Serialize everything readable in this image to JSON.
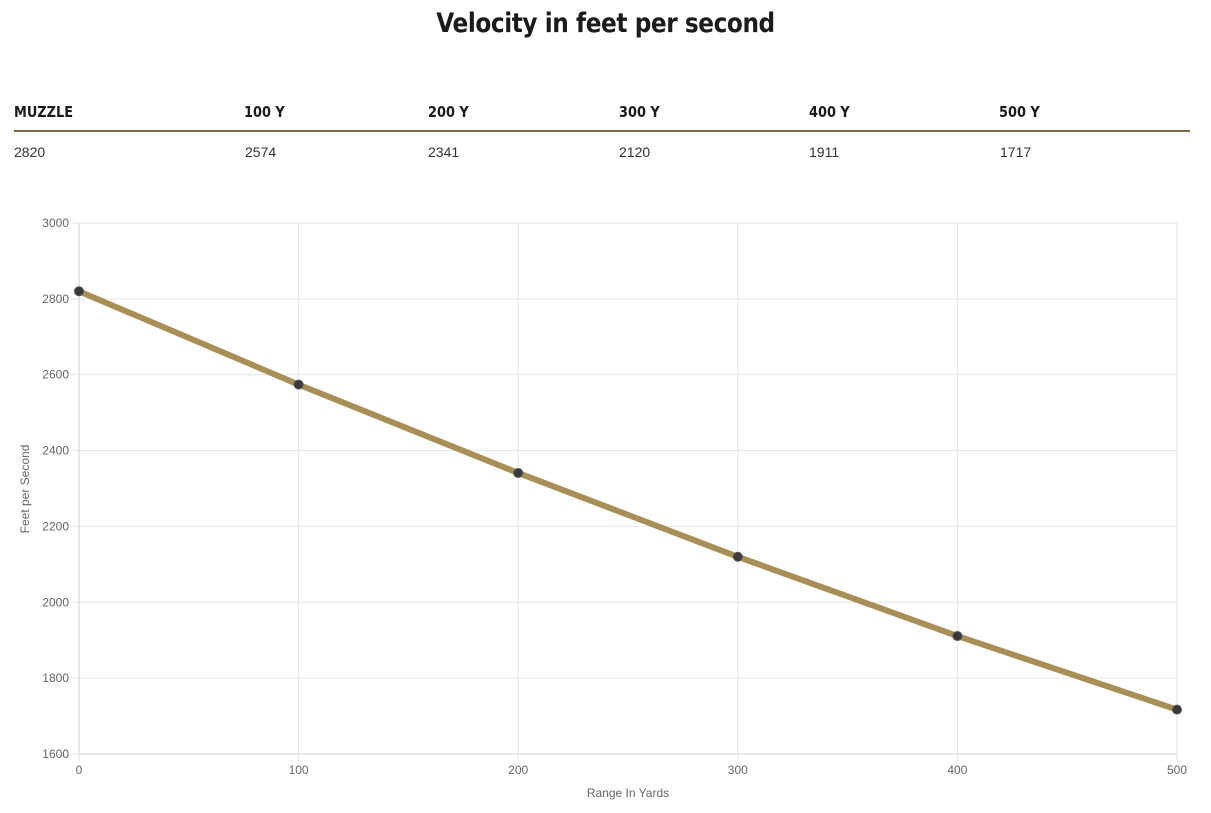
{
  "title": "Velocity in feet per second",
  "table": {
    "headers": [
      "MUZZLE",
      "100 Y",
      "200 Y",
      "300 Y",
      "400 Y",
      "500 Y"
    ],
    "values": [
      "2820",
      "2574",
      "2341",
      "2120",
      "1911",
      "1717"
    ]
  },
  "chart_data": {
    "type": "line",
    "title": "",
    "xlabel": "Range In Yards",
    "ylabel": "Feet per Second",
    "x": [
      0,
      100,
      200,
      300,
      400,
      500
    ],
    "series": [
      {
        "values": [
          2820,
          2574,
          2341,
          2120,
          1911,
          1717
        ]
      }
    ],
    "xlim": [
      0,
      500
    ],
    "ylim": [
      1600,
      3000
    ],
    "x_ticks": [
      0,
      100,
      200,
      300,
      400,
      500
    ],
    "y_ticks": [
      1600,
      1800,
      2000,
      2200,
      2400,
      2600,
      2800,
      3000
    ],
    "grid": true,
    "legend": "none",
    "colors": {
      "line": "#a88f57",
      "point": "#3a3a3a",
      "grid": "#e6e6e6",
      "axis": "#cfcfcf"
    }
  }
}
